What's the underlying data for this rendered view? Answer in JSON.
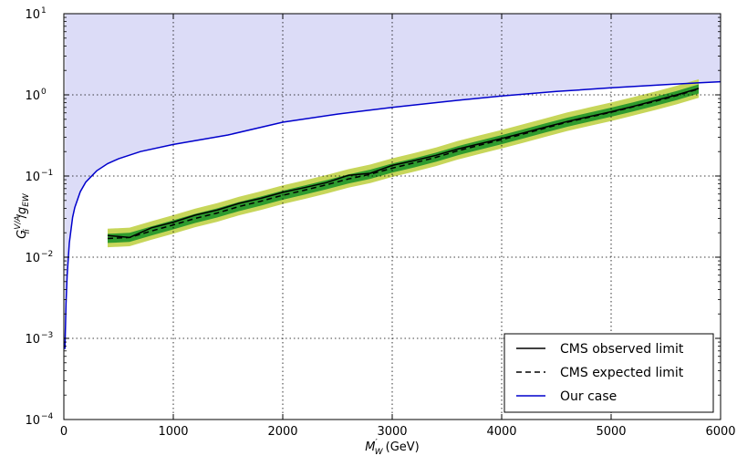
{
  "chart_data": {
    "type": "line",
    "xlabel": "M′_W (GeV)",
    "ylabel": "G_ii^{V/A}/g_EW",
    "xlim": [
      0,
      6000
    ],
    "ylim": [
      0.0001,
      10
    ],
    "y_scale": "log",
    "grid": true,
    "legend_position": "bottom-right",
    "x_ticks": [
      "0",
      "1000",
      "2000",
      "3000",
      "4000",
      "5000",
      "6000"
    ],
    "y_ticks": [
      {
        "base": "10",
        "exp": "−4",
        "value": 0.0001
      },
      {
        "base": "10",
        "exp": "−3",
        "value": 0.001
      },
      {
        "base": "10",
        "exp": "−2",
        "value": 0.01
      },
      {
        "base": "10",
        "exp": "−1",
        "value": 0.1
      },
      {
        "base": "10",
        "exp": "0",
        "value": 1
      },
      {
        "base": "10",
        "exp": "1",
        "value": 10
      }
    ],
    "colors": {
      "observed": "#000000",
      "expected": "#000000",
      "our_case": "#0000cc",
      "excluded_fill": "#dcdcf7",
      "band_1sigma": "#2e9b2e",
      "band_2sigma": "#c7d65a"
    },
    "series": [
      {
        "name": "CMS observed limit",
        "style": "solid",
        "x": [
          400,
          600,
          800,
          1000,
          1200,
          1400,
          1600,
          1800,
          2000,
          2200,
          2400,
          2600,
          2800,
          3000,
          3200,
          3400,
          3600,
          3800,
          4000,
          4200,
          4400,
          4600,
          4800,
          5000,
          5200,
          5400,
          5600,
          5800
        ],
        "y": [
          0.0185,
          0.0175,
          0.023,
          0.027,
          0.033,
          0.038,
          0.046,
          0.053,
          0.063,
          0.072,
          0.083,
          0.102,
          0.108,
          0.135,
          0.155,
          0.18,
          0.215,
          0.25,
          0.29,
          0.34,
          0.4,
          0.47,
          0.54,
          0.62,
          0.72,
          0.85,
          1.0,
          1.2
        ]
      },
      {
        "name": "CMS expected limit",
        "style": "dashed",
        "x": [
          400,
          600,
          800,
          1000,
          1200,
          1400,
          1600,
          1800,
          2000,
          2200,
          2400,
          2600,
          2800,
          3000,
          3200,
          3400,
          3600,
          3800,
          4000,
          4200,
          4400,
          4600,
          4800,
          5000,
          5200,
          5400,
          5600,
          5800
        ],
        "y": [
          0.017,
          0.0175,
          0.021,
          0.025,
          0.03,
          0.035,
          0.042,
          0.049,
          0.058,
          0.067,
          0.078,
          0.092,
          0.105,
          0.125,
          0.145,
          0.17,
          0.205,
          0.24,
          0.28,
          0.33,
          0.39,
          0.46,
          0.53,
          0.61,
          0.71,
          0.83,
          0.98,
          1.18
        ]
      },
      {
        "name": "Our case",
        "style": "solid",
        "x": [
          10,
          20,
          30,
          50,
          80,
          100,
          150,
          200,
          300,
          400,
          500,
          700,
          1000,
          1500,
          2000,
          2500,
          3000,
          3500,
          4000,
          4500,
          5000,
          5500,
          6000
        ],
        "y": [
          0.00074,
          0.0027,
          0.0059,
          0.015,
          0.031,
          0.041,
          0.064,
          0.084,
          0.116,
          0.142,
          0.163,
          0.2,
          0.245,
          0.32,
          0.46,
          0.58,
          0.7,
          0.83,
          0.97,
          1.1,
          1.22,
          1.34,
          1.45
        ]
      }
    ],
    "bands": [
      {
        "name": "2sigma",
        "y_low_factor": 0.78,
        "y_high_factor": 1.32
      },
      {
        "name": "1sigma",
        "y_low_factor": 0.88,
        "y_high_factor": 1.14
      }
    ]
  }
}
